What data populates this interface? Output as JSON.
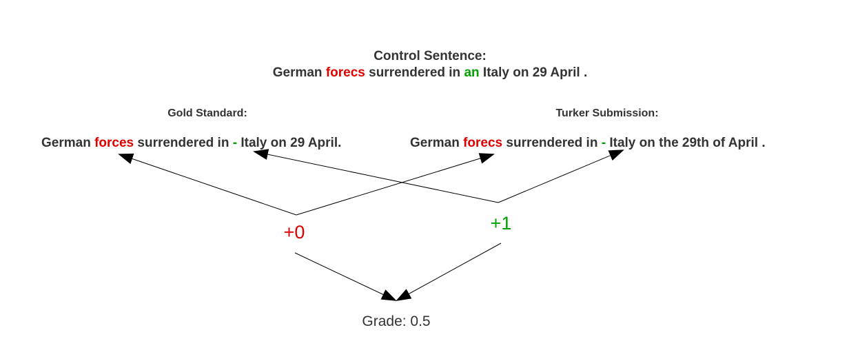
{
  "control": {
    "heading": "Control Sentence:",
    "sentence": {
      "part1": "German ",
      "error_word": "forecs",
      "part2": " surrendered in ",
      "extra_word": "an",
      "part3": " Italy on 29 April ."
    }
  },
  "gold": {
    "heading": "Gold Standard:",
    "sentence": {
      "part1": "German ",
      "fixed_word": "forces",
      "part2": " surrendered in ",
      "deletion_mark": "-",
      "part3": " Italy on 29 April."
    }
  },
  "turker": {
    "heading": "Turker Submission:",
    "sentence": {
      "part1": "German ",
      "error_word": "forecs",
      "part2": " surrendered in ",
      "deletion_mark": "-",
      "part3": " Italy on the 29th of April ."
    }
  },
  "scores": {
    "left": "+0",
    "right": "+1"
  },
  "grade": "Grade: 0.5",
  "colors": {
    "text": "#333333",
    "error": "#e00000",
    "correct": "#00a000",
    "arrow": "#000000"
  }
}
